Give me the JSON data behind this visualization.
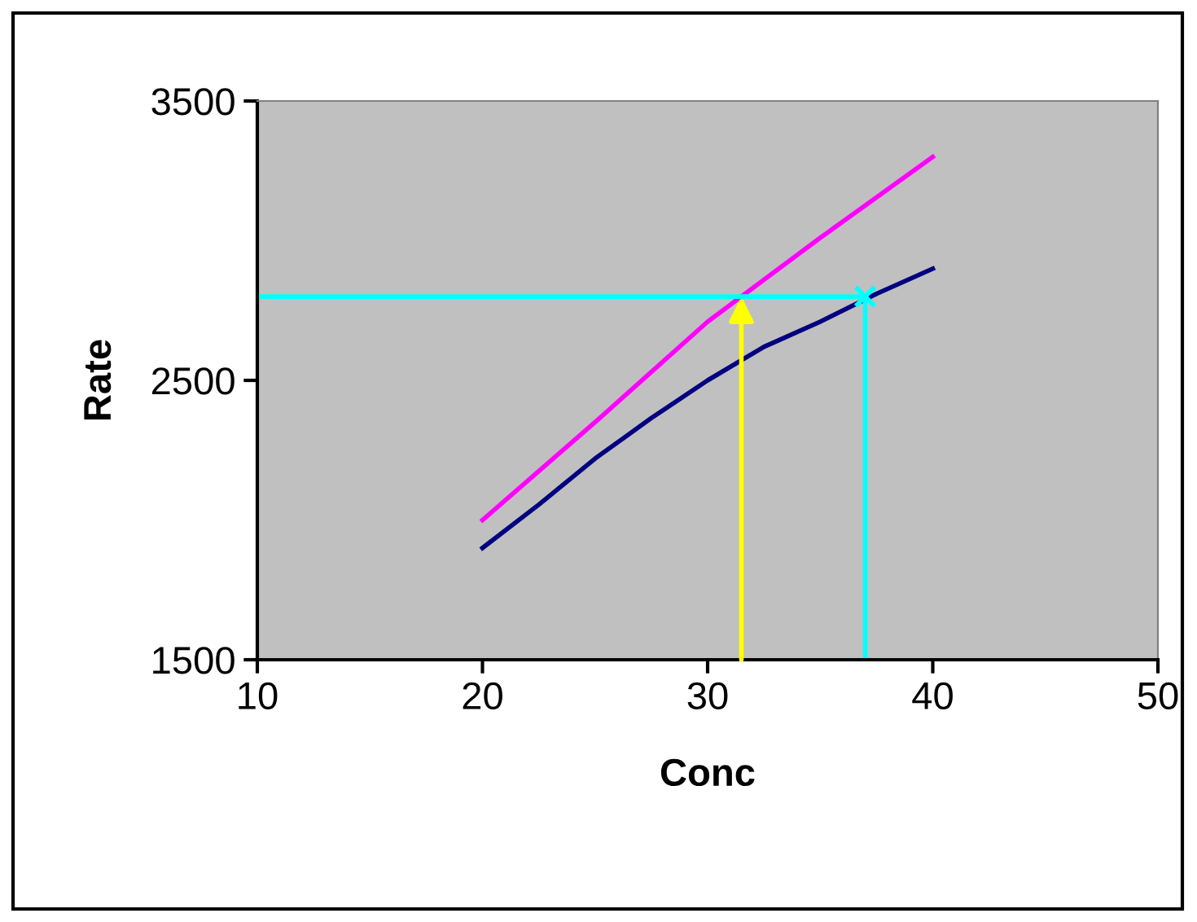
{
  "chart_data": {
    "type": "line",
    "xlabel": "Conc",
    "ylabel": "Rate",
    "xlim": [
      10,
      50
    ],
    "xticks": [
      10,
      20,
      30,
      40,
      50
    ],
    "ylim": [
      1500,
      3500
    ],
    "yticks": [
      1500,
      2500,
      3500
    ],
    "grid": false,
    "legend": false,
    "series": [
      {
        "color": "#ff00ff",
        "x": [
          20,
          25,
          30,
          35,
          40
        ],
        "values": [
          2000,
          2350,
          2710,
          3010,
          3300
        ]
      },
      {
        "color": "#000080",
        "x": [
          20,
          22.5,
          25,
          27.5,
          30,
          32.5,
          35,
          37.5,
          40
        ],
        "values": [
          1900,
          2055,
          2220,
          2365,
          2500,
          2620,
          2710,
          2810,
          2900
        ]
      },
      {
        "color": "#00ffff",
        "x": [
          10,
          37,
          37
        ],
        "values": [
          2800,
          2800,
          1500
        ]
      },
      {
        "type": "scatter",
        "color": "#00ffff",
        "marker": "cross",
        "x": [
          37
        ],
        "values": [
          2800
        ]
      }
    ]
  }
}
